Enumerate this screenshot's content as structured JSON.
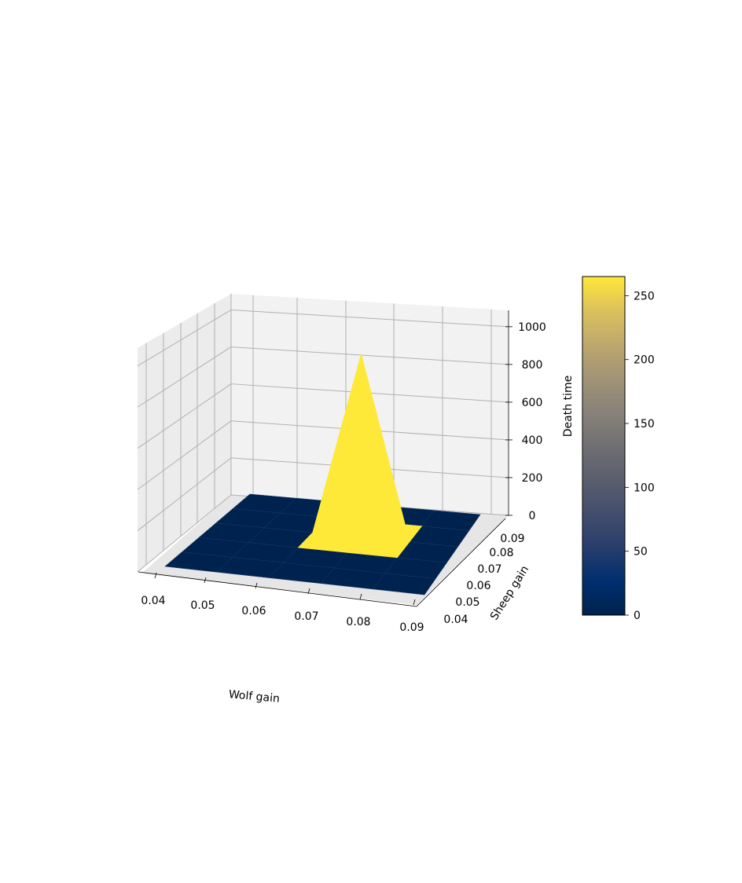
{
  "chart_data": {
    "type": "surface3d",
    "xlabel": "Wolf gain",
    "ylabel": "Sheep gain",
    "zlabel": "",
    "x_ticks": [
      "0.04",
      "0.05",
      "0.06",
      "0.07",
      "0.08",
      "0.09"
    ],
    "y_ticks": [
      "0.04",
      "0.05",
      "0.06",
      "0.07",
      "0.08",
      "0.09"
    ],
    "z_ticks": [
      "0",
      "200",
      "400",
      "600",
      "800",
      "1000"
    ],
    "x": [
      0.04,
      0.05,
      0.06,
      0.07,
      0.08,
      0.09
    ],
    "y": [
      0.04,
      0.05,
      0.06,
      0.07,
      0.08,
      0.09
    ],
    "z_grid": [
      [
        0,
        0,
        0,
        0,
        0,
        0
      ],
      [
        0,
        0,
        0,
        0,
        0,
        0
      ],
      [
        0,
        0,
        0,
        0,
        0,
        0
      ],
      [
        0,
        0,
        0,
        1000,
        0,
        0
      ],
      [
        0,
        0,
        0,
        0,
        0,
        0
      ],
      [
        0,
        0,
        0,
        0,
        0,
        0
      ]
    ],
    "zlim": [
      0,
      1050
    ],
    "grid": true,
    "colormap": "cividis",
    "colors": {
      "low": "#00224e",
      "high": "#fee838",
      "pane": "#f2f2f2",
      "gridline": "#b0b0b0"
    },
    "colorbar": {
      "label": "Death time",
      "range": [
        0,
        265
      ],
      "ticks": [
        "0",
        "50",
        "100",
        "150",
        "200",
        "250"
      ]
    }
  }
}
